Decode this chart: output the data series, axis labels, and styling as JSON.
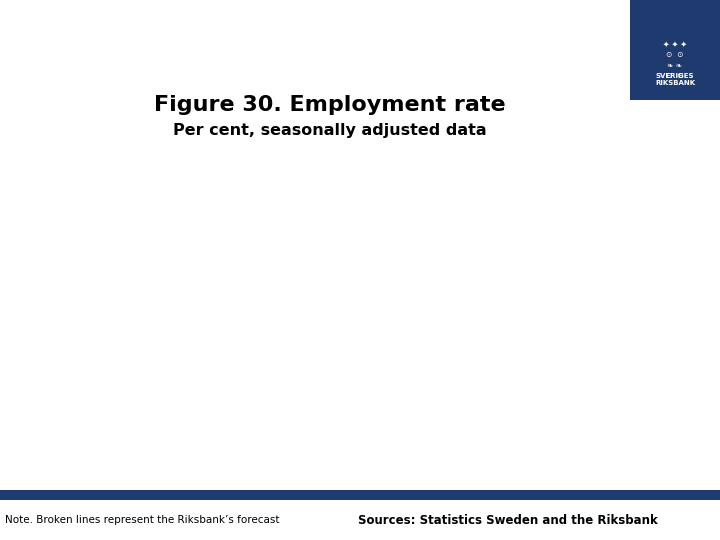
{
  "title": "Figure 30. Employment rate",
  "subtitle": "Per cent, seasonally adjusted data",
  "title_fontsize": 16,
  "subtitle_fontsize": 11.5,
  "background_color": "#ffffff",
  "logo_box_color": "#1e3a6e",
  "blue_bar_color": "#1e3a6e",
  "note_text": "Note. Broken lines represent the Riksbank’s forecast",
  "source_text": "Sources: Statistics Sweden and the Riksbank",
  "note_fontsize": 7.5,
  "source_fontsize": 8.5
}
